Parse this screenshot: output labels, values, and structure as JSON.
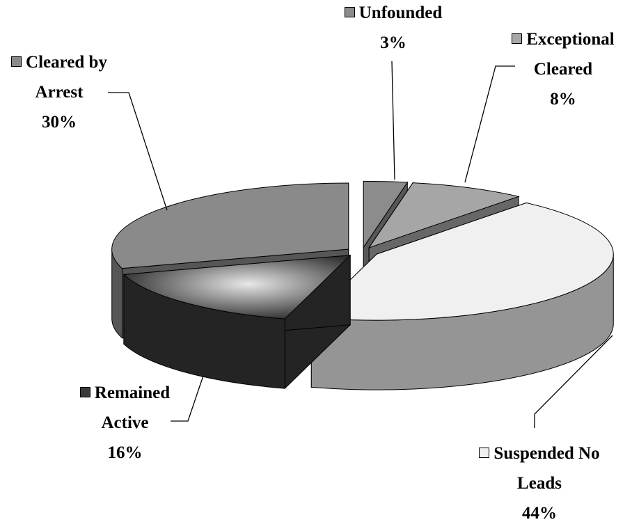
{
  "chart_data": {
    "type": "pie",
    "categories": [
      "Unfounded",
      "Exceptional Cleared",
      "Suspended No Leads",
      "Remained Active",
      "Cleared by Arrest"
    ],
    "values": [
      3,
      8,
      44,
      16,
      30
    ],
    "value_labels": [
      "3%",
      "8%",
      "44%",
      "16%",
      "30%"
    ],
    "colors": [
      "#8c8c8c",
      "#a6a6a6",
      "#f0f0f0",
      "#3a3a3a",
      "#8a8a8a"
    ],
    "three_d": true,
    "exploded": true
  }
}
